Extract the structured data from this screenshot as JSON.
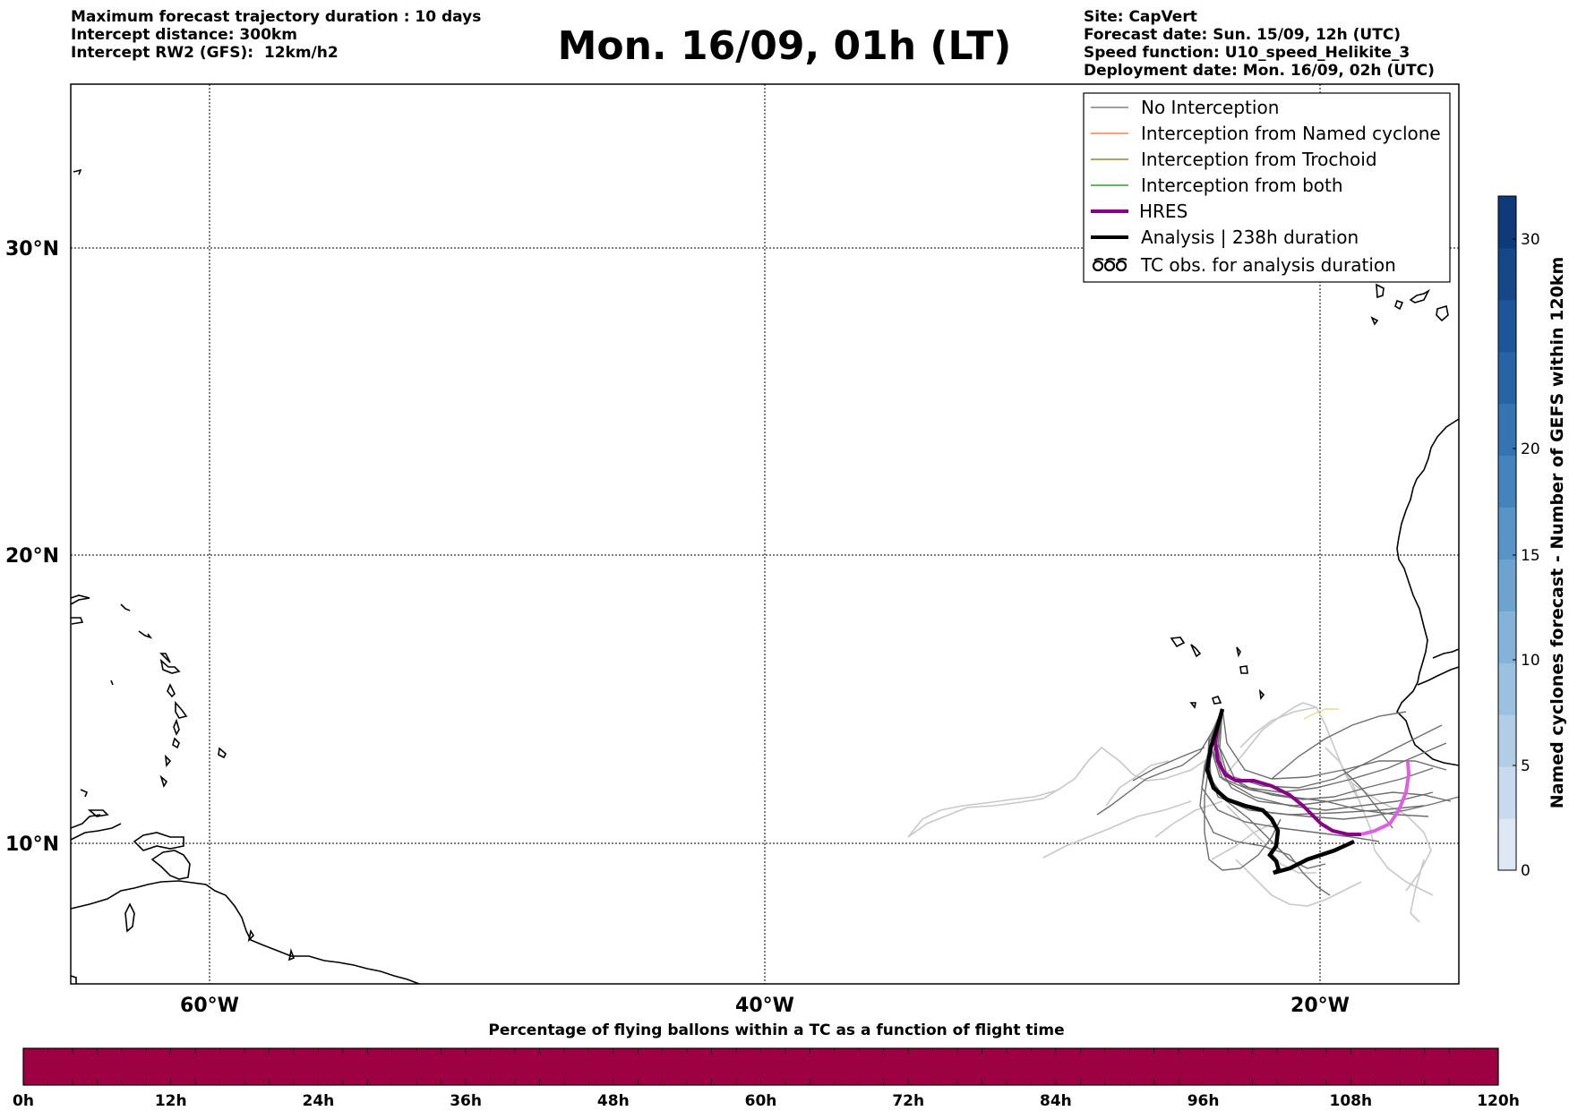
{
  "header": {
    "left_lines": [
      "Maximum forecast trajectory duration : 10 days",
      "Intercept distance: 300km",
      "Intercept RW2 (GFS):  12km/h2"
    ],
    "title": "Mon. 16/09, 01h (LT)",
    "right_lines": [
      "Site: CapVert",
      "Forecast date: Sun. 15/09, 12h (UTC)",
      "Speed function: U10_speed_Helikite_3",
      "Deployment date: Mon. 16/09, 02h (UTC)"
    ]
  },
  "map": {
    "lat_labels": [
      "30°N",
      "20°N",
      "10°N"
    ],
    "lon_labels": [
      "60°W",
      "40°W",
      "20°W"
    ],
    "extent": {
      "lon": [
        -65,
        -15
      ],
      "lat": [
        5.5,
        35
      ]
    },
    "gridlines": true
  },
  "legend": {
    "items": [
      {
        "label": "No Interception",
        "color": "#808080",
        "style": "thin"
      },
      {
        "label": "Interception from Named cyclone",
        "color": "#ff7f50",
        "style": "thin"
      },
      {
        "label": "Interception from Trochoid",
        "color": "#8b8b2b",
        "style": "thin"
      },
      {
        "label": "Interception from both",
        "color": "#2ca02c",
        "style": "thin"
      },
      {
        "label": "HRES",
        "color": "#8b008b",
        "style": "thick"
      },
      {
        "label": "Analysis | 238h duration",
        "color": "#000000",
        "style": "thick"
      },
      {
        "label": "TC obs. for analysis duration",
        "color": "#000000",
        "style": "tc-icon"
      }
    ]
  },
  "colorbar_right": {
    "label": "Named cyclones forecast - Number of GEFS within 120km",
    "ticks": [
      "0",
      "5",
      "10",
      "15",
      "20",
      "30"
    ],
    "colors": [
      "#dde8f4",
      "#c8dbee",
      "#b2cde6",
      "#9cc0df",
      "#84b2d8",
      "#6ea3d0",
      "#5894c8",
      "#4484bd",
      "#3474b2",
      "#2764a6",
      "#1d5598",
      "#154789",
      "#0e3a79"
    ]
  },
  "colorbar_bottom": {
    "label": "Percentage of flying ballons within a TC as a function of flight time",
    "ticks": [
      "0h",
      "12h",
      "24h",
      "36h",
      "48h",
      "60h",
      "72h",
      "84h",
      "96h",
      "108h",
      "120h"
    ],
    "color": "#9e0142"
  }
}
